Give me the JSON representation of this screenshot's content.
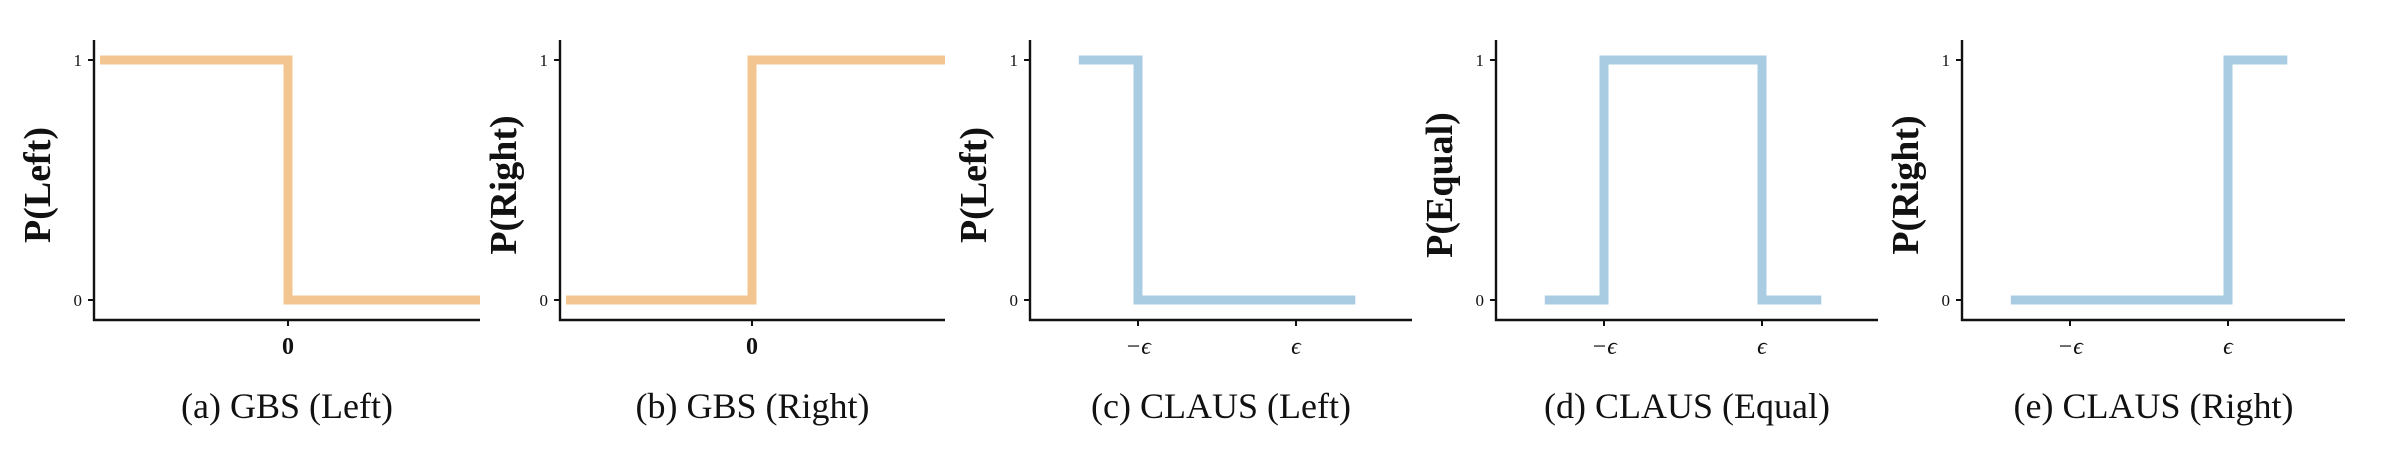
{
  "colors": {
    "gbs": "#F3C590",
    "claus": "#A9CCE3",
    "axis": "#111111"
  },
  "chart_data": [
    {
      "type": "line",
      "caption": "(a) GBS (Left)",
      "ylabel": "P(Left)",
      "xticks": [
        "0"
      ],
      "yticks": [
        "1",
        "0"
      ],
      "ylim": [
        0,
        1
      ],
      "color": "gbs",
      "step_points": [
        [
          -1,
          1
        ],
        [
          0,
          1
        ],
        [
          0,
          0
        ],
        [
          1,
          0
        ]
      ]
    },
    {
      "type": "line",
      "caption": "(b) GBS (Right)",
      "ylabel": "P(Right)",
      "xticks": [
        "0"
      ],
      "yticks": [
        "1",
        "0"
      ],
      "ylim": [
        0,
        1
      ],
      "color": "gbs",
      "step_points": [
        [
          -1,
          0
        ],
        [
          0,
          0
        ],
        [
          0,
          1
        ],
        [
          1,
          1
        ]
      ]
    },
    {
      "type": "line",
      "caption": "(c) CLAUS (Left)",
      "ylabel": "P(Left)",
      "xticks": [
        "−ϵ",
        "ϵ"
      ],
      "yticks": [
        "1",
        "0"
      ],
      "ylim": [
        0,
        1
      ],
      "color": "claus",
      "step_points": [
        [
          -1.75,
          1
        ],
        [
          -1,
          1
        ],
        [
          -1,
          0
        ],
        [
          1.75,
          0
        ]
      ]
    },
    {
      "type": "line",
      "caption": "(d) CLAUS (Equal)",
      "ylabel": "P(Equal)",
      "xticks": [
        "−ϵ",
        "ϵ"
      ],
      "yticks": [
        "1",
        "0"
      ],
      "ylim": [
        0,
        1
      ],
      "color": "claus",
      "step_points": [
        [
          -1.75,
          0
        ],
        [
          -1,
          0
        ],
        [
          -1,
          1
        ],
        [
          1,
          1
        ],
        [
          1,
          0
        ],
        [
          1.75,
          0
        ]
      ]
    },
    {
      "type": "line",
      "caption": "(e) CLAUS (Right)",
      "ylabel": "P(Right)",
      "xticks": [
        "−ϵ",
        "ϵ"
      ],
      "yticks": [
        "1",
        "0"
      ],
      "ylim": [
        0,
        1
      ],
      "color": "claus",
      "step_points": [
        [
          -1.75,
          0
        ],
        [
          1,
          0
        ],
        [
          1,
          1
        ],
        [
          1.75,
          1
        ]
      ]
    }
  ]
}
